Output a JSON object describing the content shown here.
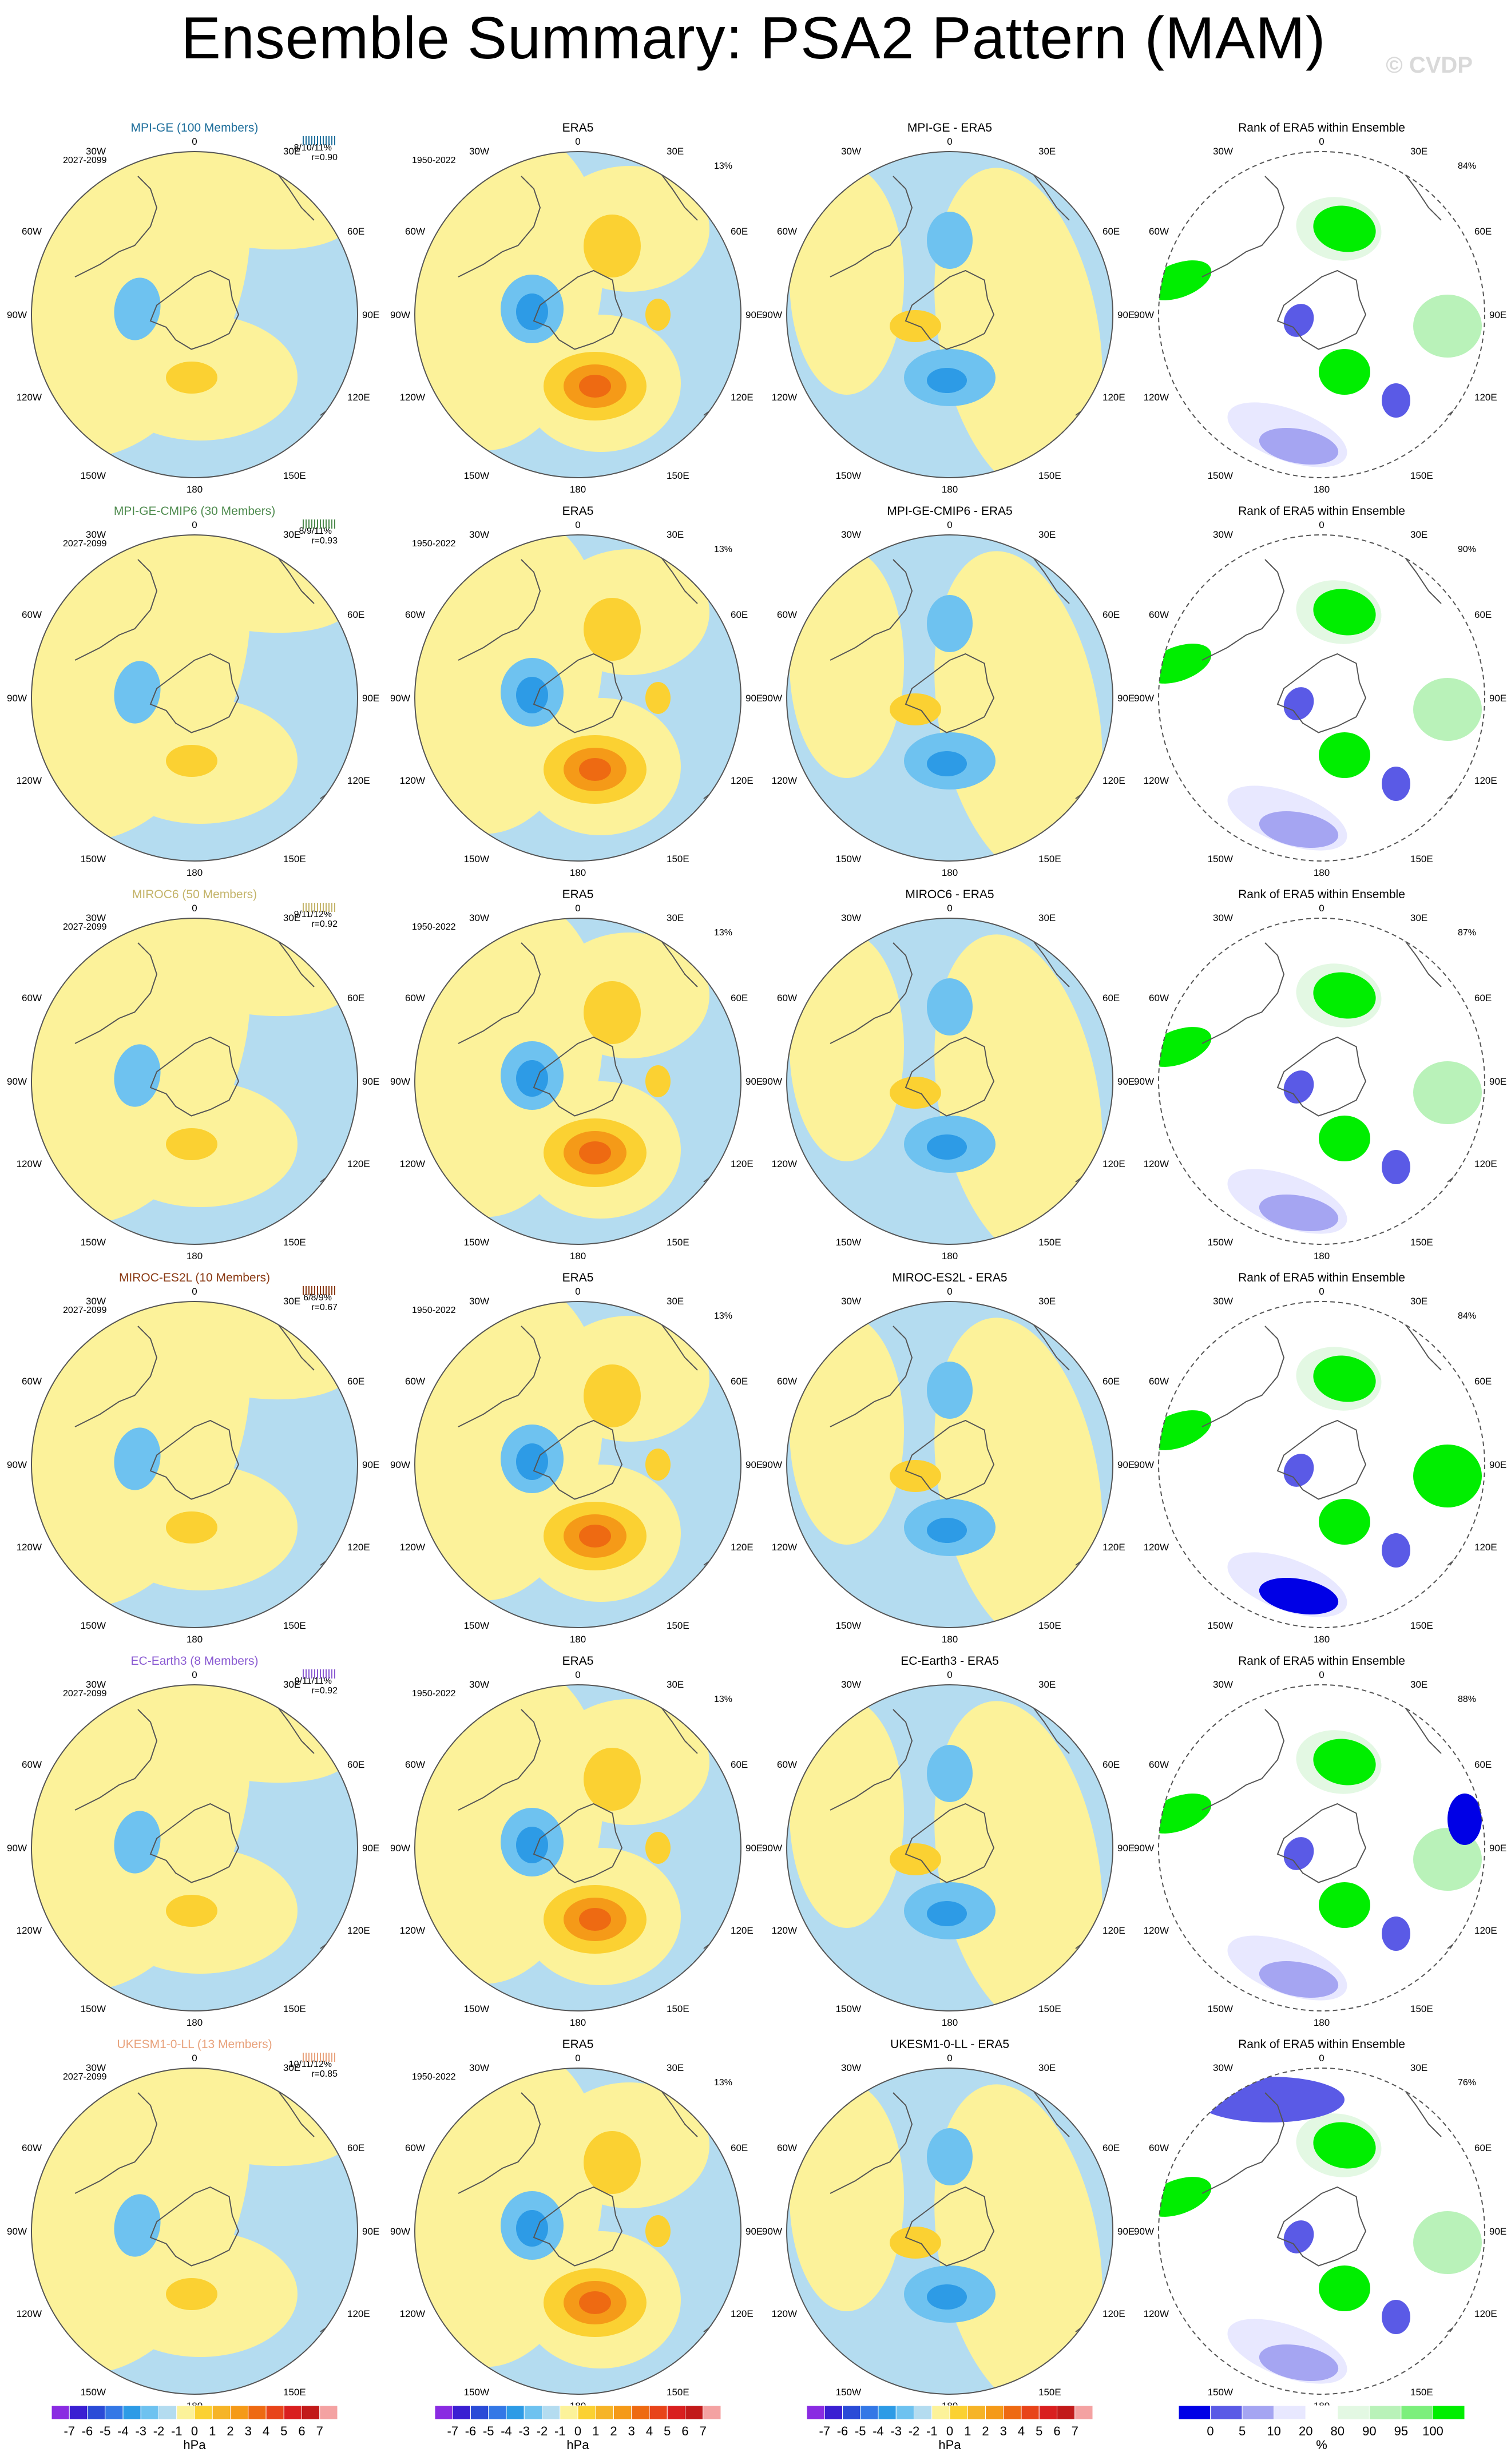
{
  "title": "Ensemble Summary: PSA2 Pattern (MAM)",
  "copyright": "© CVDP",
  "colors": {
    "neg1": "#b4dcf0",
    "neg2": "#6ec2f0",
    "neg3": "#2d9be6",
    "pos1": "#fcf29a",
    "pos2": "#fbd132",
    "pos3": "#f59a18",
    "pos4": "#ee6a12",
    "rank_blue1": "#e8e8ff",
    "rank_blue2": "#a5a5f2",
    "rank_blue3": "#5a5ae6",
    "rank_blue4": "#0000e6",
    "rank_green1": "#e3f8e3",
    "rank_green2": "#b9f2b9",
    "rank_green3": "#7cef7c",
    "rank_green4": "#00ee00"
  },
  "icons": {
    "map": "polar-stereographic-map-icon"
  },
  "map_labels": {
    "top": "0",
    "bottom": "180",
    "lon_30w": "30W",
    "lon_30e": "30E",
    "lon_60w": "60W",
    "lon_60e": "60E",
    "lon_90w": "90W",
    "lon_90e": "90E",
    "lon_120w": "120W",
    "lon_120e": "120E",
    "lon_150w": "150W",
    "lon_150e": "150E"
  },
  "chart_data": {
    "type": "heatmap",
    "description_of_panels": "Southern-hemisphere polar maps of PSA2 regression pattern",
    "era5_title": "ERA5",
    "era5_period": "1950-2022",
    "era5_pct": "13%",
    "rank_title": "Rank of ERA5 within Ensemble",
    "rows": [
      {
        "model": "MPI-GE (100 Members)",
        "model_color": "#1f6f9c",
        "period": "2027-2099",
        "stats": "8/10/11%",
        "r": "r=0.90",
        "diff_title": "MPI-GE - ERA5",
        "rank_pct": "84%"
      },
      {
        "model": "MPI-GE-CMIP6 (30 Members)",
        "model_color": "#4d8a4d",
        "period": "2027-2099",
        "stats": "8/9/11%",
        "r": "r=0.93",
        "diff_title": "MPI-GE-CMIP6 - ERA5",
        "rank_pct": "90%"
      },
      {
        "model": "MIROC6 (50 Members)",
        "model_color": "#c4b46a",
        "period": "2027-2099",
        "stats": "9/11/12%",
        "r": "r=0.92",
        "diff_title": "MIROC6 - ERA5",
        "rank_pct": "87%"
      },
      {
        "model": "MIROC-ES2L (10 Members)",
        "model_color": "#8a3a14",
        "period": "2027-2099",
        "stats": "6/8/9%",
        "r": "r=0.67",
        "diff_title": "MIROC-ES2L - ERA5",
        "rank_pct": "84%"
      },
      {
        "model": "EC-Earth3 (8 Members)",
        "model_color": "#8a5ad2",
        "period": "2027-2099",
        "stats": "9/11/11%",
        "r": "r=0.92",
        "diff_title": "EC-Earth3 - ERA5",
        "rank_pct": "88%"
      },
      {
        "model": "UKESM1-0-LL (13 Members)",
        "model_color": "#e8a27c",
        "period": "2027-2099",
        "stats": "10/11/12%",
        "r": "r=0.85",
        "diff_title": "UKESM1-0-LL - ERA5",
        "rank_pct": "76%"
      }
    ],
    "colorbar_hpa": {
      "labels": [
        "-7",
        "-6",
        "-5",
        "-4",
        "-3",
        "-2",
        "-1",
        "0",
        "1",
        "2",
        "3",
        "4",
        "5",
        "6",
        "7"
      ],
      "colors": [
        "#8a2be2",
        "#3a1fd2",
        "#2a4bd7",
        "#3478e6",
        "#2d9be6",
        "#6ec2f0",
        "#b4dcf0",
        "#fcf29a",
        "#fbd132",
        "#f6b427",
        "#f59a18",
        "#ee6a12",
        "#e8441a",
        "#d91f1f",
        "#c21a1a",
        "#f4a2a2"
      ],
      "units": "hPa"
    },
    "colorbar_rank": {
      "labels": [
        "0",
        "5",
        "10",
        "20",
        "80",
        "90",
        "95",
        "100"
      ],
      "colors": [
        "#0000e6",
        "#5a5ae6",
        "#a5a5f2",
        "#e8e8ff",
        "#ffffff",
        "#e3f8e3",
        "#b9f2b9",
        "#7cef7c",
        "#00ee00"
      ],
      "units": "%"
    }
  }
}
